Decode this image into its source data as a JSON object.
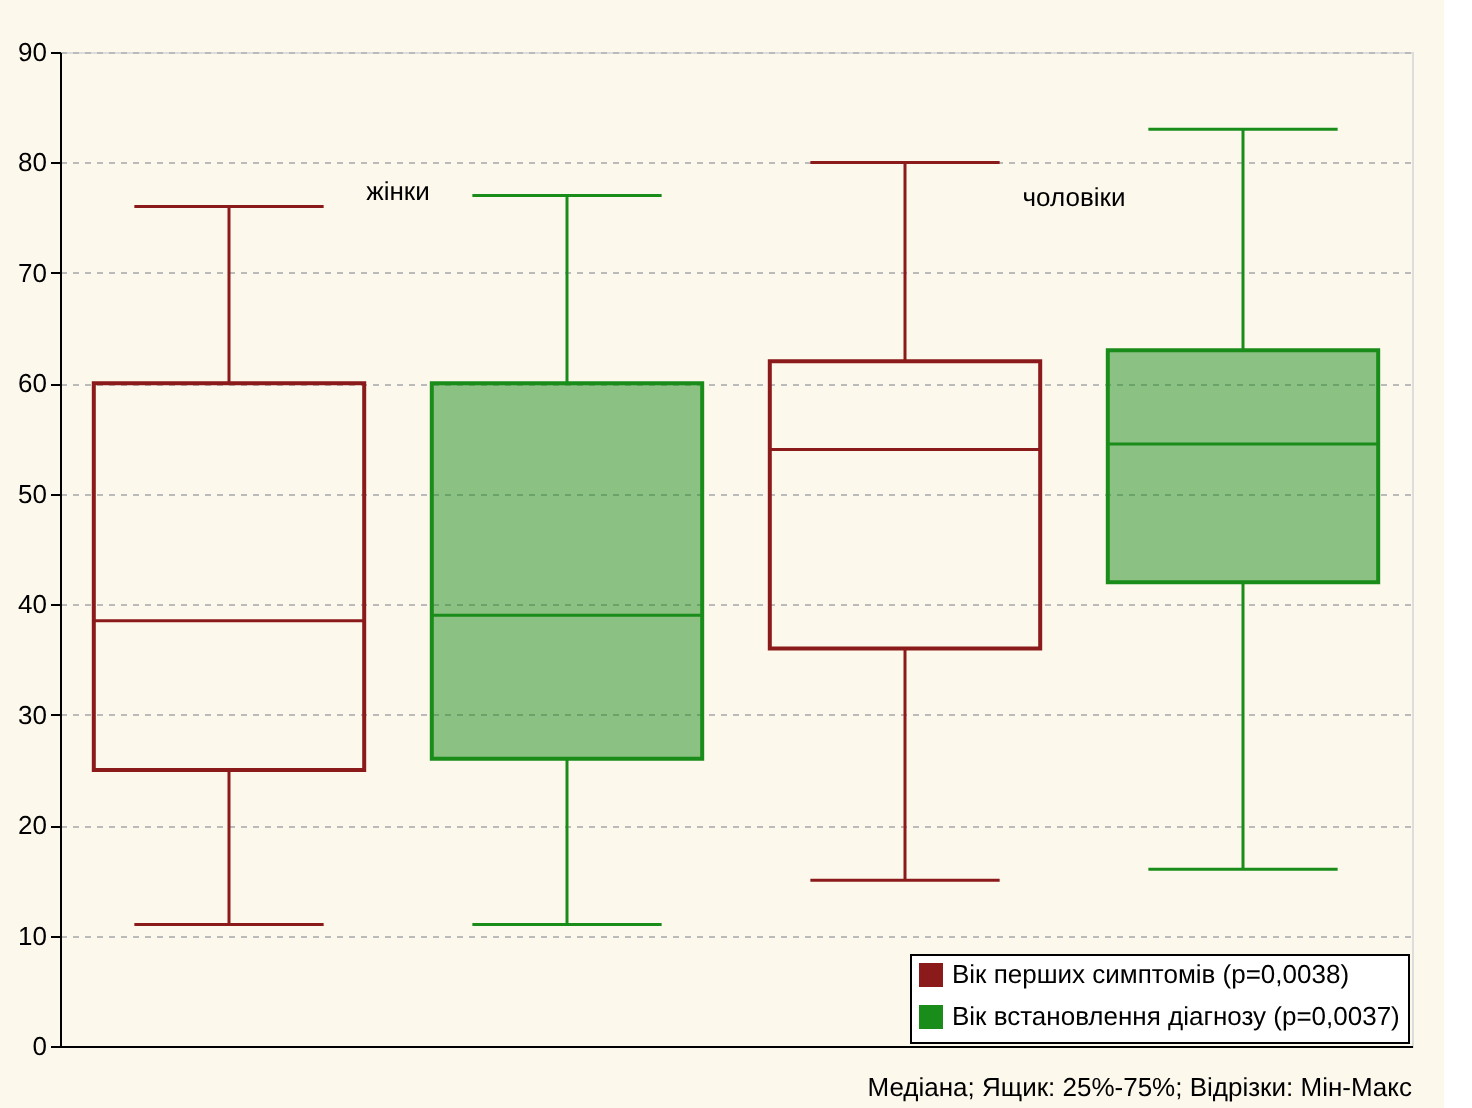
{
  "chart_data": {
    "type": "box",
    "categories": [
      null,
      null
    ],
    "series": [
      {
        "name": "Вік перших симптомів (p=0,0038)",
        "color": "#8b1a1a",
        "boxes": [
          {
            "low": 11,
            "q1": 25,
            "median": 38.5,
            "q3": 60,
            "high": 76
          },
          {
            "low": 15,
            "q1": 36,
            "median": 54,
            "q3": 62,
            "high": 80
          }
        ]
      },
      {
        "name": "Вік встановлення діагнозу (p=0,0037)",
        "color": "#1a8c1a",
        "boxes": [
          {
            "low": 11,
            "q1": 26,
            "median": 39,
            "q3": 60,
            "high": 77
          },
          {
            "low": 16,
            "q1": 42,
            "median": 54.5,
            "q3": 63,
            "high": 83
          }
        ]
      }
    ],
    "ylim": [
      0,
      90
    ],
    "yticks": [
      0,
      10,
      20,
      30,
      40,
      50,
      60,
      70,
      80,
      90
    ],
    "grid": "y",
    "legend": "bottom right",
    "tick_labels": "y",
    "annotations": [
      "жінки",
      "чоловіки",
      "Медіана; Ящик: 25%-75%; Відрізки: Мін-Макс"
    ]
  }
}
